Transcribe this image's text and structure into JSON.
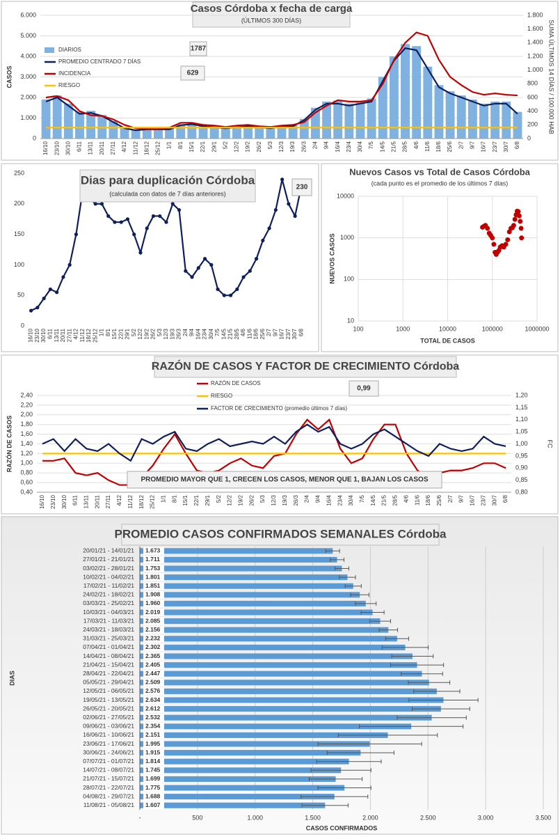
{
  "chart_data": [
    {
      "type": "combo",
      "title": "Casos Córdoba x fecha de carga",
      "subtitle": "(ÚLTIMOS 300 DÍAS)",
      "ylabel": "CASOS",
      "y2label": "SUMA ÚLTIMOS 14 DÍAS / 100.000 HAB",
      "categories": [
        "16/10",
        "23/10",
        "30/10",
        "6/11",
        "13/11",
        "20/11",
        "27/11",
        "4/12",
        "11/12",
        "18/12",
        "25/12",
        "1/1",
        "8/1",
        "15/1",
        "22/1",
        "29/1",
        "5/2",
        "12/2",
        "19/2",
        "26/2",
        "5/3",
        "12/3",
        "19/3",
        "26/3",
        "2/4",
        "9/4",
        "16/4",
        "23/4",
        "30/4",
        "7/5",
        "14/5",
        "21/5",
        "28/5",
        "4/6",
        "11/6",
        "18/6",
        "25/6",
        "2/7",
        "9/7",
        "16/7",
        "23/7",
        "30/7",
        "6/8"
      ],
      "series": [
        {
          "name": "DIARIOS",
          "kind": "bar",
          "color": "#7fb2e0",
          "values": [
            1900,
            2100,
            1700,
            1300,
            1350,
            1150,
            850,
            550,
            420,
            480,
            460,
            500,
            700,
            750,
            620,
            580,
            520,
            580,
            640,
            560,
            540,
            650,
            640,
            950,
            1500,
            1800,
            1850,
            1700,
            1800,
            1950,
            3000,
            4000,
            4600,
            4500,
            3500,
            2600,
            2300,
            2100,
            1900,
            1700,
            1800,
            1800,
            1300
          ]
        },
        {
          "name": "PROMEDIO CENTRADO 7 DÍAS",
          "kind": "line",
          "color": "#0d1f5c",
          "values": [
            1800,
            2000,
            1600,
            1200,
            1250,
            1100,
            800,
            500,
            400,
            450,
            450,
            450,
            650,
            700,
            600,
            550,
            500,
            550,
            600,
            550,
            500,
            600,
            600,
            900,
            1400,
            1700,
            1700,
            1600,
            1700,
            1800,
            2800,
            3800,
            4400,
            4300,
            3400,
            2500,
            2200,
            2000,
            1800,
            1600,
            1700,
            1700,
            1200
          ]
        },
        {
          "name": "INCIDENCIA",
          "kind": "line",
          "axis": "y2",
          "color": "#c00000",
          "values": [
            600,
            620,
            560,
            400,
            340,
            330,
            280,
            200,
            150,
            140,
            140,
            160,
            230,
            230,
            200,
            190,
            170,
            190,
            200,
            180,
            170,
            190,
            200,
            240,
            380,
            480,
            560,
            540,
            540,
            560,
            800,
            1150,
            1400,
            1550,
            1500,
            1150,
            900,
            780,
            680,
            640,
            660,
            640,
            630
          ]
        },
        {
          "name": "RIESGO",
          "kind": "line",
          "axis": "y2",
          "color": "#ffc000",
          "values": [
            160,
            160,
            160,
            160,
            160,
            160,
            160,
            160,
            160,
            160,
            160,
            160,
            160,
            160,
            160,
            160,
            160,
            160,
            160,
            160,
            160,
            160,
            160,
            160,
            160,
            160,
            160,
            160,
            160,
            160,
            160,
            160,
            160,
            160,
            160,
            160,
            160,
            160,
            160,
            160,
            160,
            160,
            160
          ]
        }
      ],
      "annotations": [
        "1787",
        "629"
      ],
      "ylim": [
        0,
        6000
      ],
      "yticks": [
        0,
        {
          "value": 1000,
          "label": "1.000"
        },
        {
          "value": 2000,
          "label": "2.000"
        },
        {
          "value": 3000,
          "label": "3.000"
        },
        {
          "value": 4000,
          "label": "4.000"
        },
        {
          "value": 5000,
          "label": "5.000"
        },
        {
          "value": 6000,
          "label": "6.000"
        }
      ],
      "y2lim": [
        0,
        1800
      ],
      "y2ticks": [
        0,
        200,
        400,
        600,
        800,
        {
          "value": 1000,
          "label": "1.000"
        },
        {
          "value": 1200,
          "label": "1.200"
        },
        {
          "value": 1400,
          "label": "1.400"
        },
        {
          "value": 1600,
          "label": "1.600"
        },
        {
          "value": 1800,
          "label": "1.800"
        }
      ],
      "grid": true
    },
    {
      "type": "line",
      "title": "Dias para duplicación Córdoba",
      "subtitle": "(calculada con datos de 7 días anteriores)",
      "annotations": [
        "230"
      ],
      "categories": [
        "16/10",
        "23/10",
        "30/10",
        "6/11",
        "13/11",
        "20/11",
        "27/11",
        "4/12",
        "11/12",
        "18/12",
        "25/12",
        "1/1",
        "8/1",
        "15/1",
        "22/1",
        "29/1",
        "5/2",
        "12/2",
        "19/2",
        "26/2",
        "5/3",
        "12/3",
        "19/3",
        "26/3",
        "2/4",
        "9/4",
        "16/4",
        "23/4",
        "30/4",
        "7/5",
        "14/5",
        "21/5",
        "28/5",
        "4/6",
        "11/6",
        "18/6",
        "25/6",
        "2/7",
        "9/7",
        "16/7",
        "23/7",
        "30/7",
        "6/8"
      ],
      "series": [
        {
          "name": "Dias para duplicación",
          "color": "#0d1f5c",
          "values": [
            25,
            30,
            45,
            60,
            55,
            80,
            100,
            150,
            220,
            210,
            200,
            200,
            180,
            170,
            170,
            175,
            150,
            120,
            160,
            180,
            180,
            170,
            200,
            190,
            90,
            80,
            95,
            110,
            100,
            60,
            50,
            50,
            60,
            80,
            90,
            110,
            140,
            160,
            190,
            240,
            200,
            180,
            230
          ]
        }
      ],
      "ylim": [
        0,
        250
      ],
      "yticks": [
        0,
        50,
        100,
        150,
        200,
        250
      ],
      "grid": false
    },
    {
      "type": "scatter",
      "title": "Nuevos Casos vs Total de Casos Córdoba",
      "subtitle": "(cada punto es el promedio de los últimos 7 días)",
      "xlabel": "TOTAL DE CASOS",
      "ylabel": "NUEVOS CASOS",
      "color": "#c00000",
      "x": [
        60000,
        65000,
        70000,
        78000,
        85000,
        92000,
        100000,
        108000,
        115000,
        122000,
        130000,
        140000,
        150000,
        165000,
        180000,
        200000,
        220000,
        240000,
        260000,
        280000,
        300000,
        320000,
        340000,
        360000,
        380000,
        400000,
        420000,
        440000,
        450000
      ],
      "y": [
        1800,
        1900,
        2000,
        1700,
        1300,
        1150,
        1000,
        700,
        450,
        400,
        450,
        500,
        600,
        650,
        600,
        700,
        900,
        1400,
        1700,
        1750,
        2000,
        2800,
        3600,
        4400,
        4300,
        3400,
        2500,
        1700,
        1000
      ],
      "log_x": true,
      "log_y": true,
      "xlim": [
        100,
        1000000
      ],
      "xticks": [
        100,
        1000,
        10000,
        100000,
        1000000
      ],
      "ylim": [
        10,
        10000
      ],
      "yticks": [
        10,
        100,
        1000,
        10000
      ],
      "grid": true
    },
    {
      "type": "combo",
      "title": "RAZÓN DE CASOS Y FACTOR DE CRECIMIENTO Córdoba",
      "ylabel": "RAZÓN DE CASOS",
      "y2label": "FC",
      "annotations": [
        "0,99",
        "PROMEDIO MAYOR QUE 1, CRECEN LOS CASOS, MENOR QUE 1, BAJAN LOS CASOS"
      ],
      "categories": [
        "16/10",
        "23/10",
        "30/10",
        "6/11",
        "13/11",
        "20/11",
        "27/11",
        "4/12",
        "11/12",
        "18/12",
        "25/12",
        "1/1",
        "8/1",
        "15/1",
        "22/1",
        "29/1",
        "5/2",
        "12/2",
        "19/2",
        "26/2",
        "5/3",
        "12/3",
        "19/3",
        "26/3",
        "2/4",
        "9/4",
        "16/4",
        "23/4",
        "30/4",
        "7/5",
        "14/5",
        "21/5",
        "28/5",
        "4/6",
        "11/6",
        "18/6",
        "25/6",
        "2/7",
        "9/7",
        "16/7",
        "23/7",
        "30/7",
        "6/8"
      ],
      "series": [
        {
          "name": "RAZÓN DE CASOS",
          "kind": "line",
          "color": "#c00000",
          "values": [
            1.05,
            1.05,
            1.1,
            0.8,
            0.75,
            0.8,
            0.65,
            0.55,
            0.55,
            0.7,
            0.95,
            1.3,
            1.6,
            1.2,
            0.85,
            0.8,
            0.85,
            1.0,
            1.1,
            0.95,
            0.9,
            1.15,
            1.2,
            1.6,
            1.9,
            1.7,
            1.9,
            1.3,
            1.0,
            1.1,
            1.5,
            1.8,
            1.8,
            1.2,
            0.85,
            0.7,
            0.8,
            0.85,
            0.85,
            0.9,
            1.0,
            1.0,
            0.9
          ]
        },
        {
          "name": "RIESGO",
          "kind": "line",
          "color": "#ffc000",
          "values": [
            1.2,
            1.2,
            1.2,
            1.2,
            1.2,
            1.2,
            1.2,
            1.2,
            1.2,
            1.2,
            1.2,
            1.2,
            1.2,
            1.2,
            1.2,
            1.2,
            1.2,
            1.2,
            1.2,
            1.2,
            1.2,
            1.2,
            1.2,
            1.2,
            1.2,
            1.2,
            1.2,
            1.2,
            1.2,
            1.2,
            1.2,
            1.2,
            1.2,
            1.2,
            1.2,
            1.2,
            1.2,
            1.2,
            1.2,
            1.2,
            1.2,
            1.2,
            1.2
          ]
        },
        {
          "name": "FACTOR DE CRECIMIENTO (promedio últimos 7 días)",
          "kind": "line",
          "axis": "y2",
          "color": "#0d1f5c",
          "values": [
            1.0,
            1.02,
            0.97,
            1.02,
            0.98,
            0.97,
            1.0,
            0.96,
            0.93,
            1.02,
            1.0,
            1.03,
            1.05,
            0.98,
            0.97,
            1.0,
            1.02,
            0.99,
            1.0,
            1.01,
            1.0,
            1.03,
            1.0,
            1.05,
            1.08,
            1.05,
            1.07,
            1.0,
            0.98,
            1.0,
            1.04,
            1.06,
            1.03,
            1.0,
            0.97,
            0.95,
            1.0,
            0.98,
            0.97,
            0.98,
            1.03,
            1.0,
            0.99
          ]
        }
      ],
      "ylim": [
        0.4,
        2.4
      ],
      "yticks": [
        {
          "value": 0.4,
          "label": "0,40"
        },
        {
          "value": 0.6,
          "label": "0,60"
        },
        {
          "value": 0.8,
          "label": "0,80"
        },
        {
          "value": 1.0,
          "label": "1,00"
        },
        {
          "value": 1.2,
          "label": "1,20"
        },
        {
          "value": 1.4,
          "label": "1,40"
        },
        {
          "value": 1.6,
          "label": "1,60"
        },
        {
          "value": 1.8,
          "label": "1,80"
        },
        {
          "value": 2.0,
          "label": "2,00"
        },
        {
          "value": 2.2,
          "label": "2,20"
        },
        {
          "value": 2.4,
          "label": "2,40"
        }
      ],
      "y2lim": [
        0.8,
        1.2
      ],
      "y2ticks": [
        {
          "value": 0.8,
          "label": "0,80"
        },
        {
          "value": 0.85,
          "label": "0,85"
        },
        {
          "value": 0.9,
          "label": "0,90"
        },
        {
          "value": 0.95,
          "label": "0,95"
        },
        {
          "value": 1.0,
          "label": "1,00"
        },
        {
          "value": 1.05,
          "label": "1,05"
        },
        {
          "value": 1.1,
          "label": "1,10"
        },
        {
          "value": 1.15,
          "label": "1,15"
        },
        {
          "value": 1.2,
          "label": "1,20"
        }
      ],
      "grid": true
    },
    {
      "type": "bar",
      "title": "PROMEDIO CASOS CONFIRMADOS SEMANALES Córdoba",
      "xlabel": "CASOS CONFIRMADOS",
      "ylabel": "DIAS",
      "color": "#5b9bd5",
      "orientation": "horizontal",
      "categories": [
        "20/01/21 - 14/01/21",
        "27/01/21 - 21/01/21",
        "03/02/21 - 28/01/21",
        "10/02/21 - 04/02/21",
        "17/02/21 - 11/02/21",
        "24/02/21 - 18/02/21",
        "03/03/21 - 25/02/21",
        "10/03/21 - 04/03/21",
        "17/03/21 - 11/03/21",
        "24/03/21 - 18/03/21",
        "31/03/21 - 25/03/21",
        "07/04/21 - 01/04/21",
        "14/04/21 - 08/04/21",
        "21/04/21 - 15/04/21",
        "28/04/21 - 22/04/21",
        "05/05/21 - 29/04/21",
        "12/05/21 - 06/05/21",
        "19/05/21 - 13/05/21",
        "26/05/21 - 20/05/21",
        "02/06/21 - 27/05/21",
        "09/06/21 - 03/06/21",
        "16/06/21 - 10/06/21",
        "23/06/21 - 17/06/21",
        "30/06/21 - 24/06/21",
        "07/07/21 - 01/07/21",
        "14/07/21 - 08/07/21",
        "21/07/21 - 15/07/21",
        "28/07/21 - 22/07/21",
        "04/08/21 - 29/07/21",
        "11/08/21 - 05/08/21"
      ],
      "values": [
        1673,
        1711,
        1753,
        1801,
        1851,
        1908,
        1960,
        2019,
        2085,
        2156,
        2232,
        2302,
        2365,
        2405,
        2447,
        2509,
        2576,
        2634,
        2612,
        2532,
        2354,
        2151,
        1995,
        1915,
        1814,
        1745,
        1699,
        1775,
        1688,
        1607
      ],
      "value_labels": [
        "1.673",
        "1.711",
        "1.753",
        "1.801",
        "1.851",
        "1.908",
        "1.960",
        "2.019",
        "2.085",
        "2.156",
        "2.232",
        "2.302",
        "2.365",
        "2.405",
        "2.447",
        "2.509",
        "2.576",
        "2.634",
        "2.612",
        "2.532",
        "2.354",
        "2.151",
        "1.995",
        "1.915",
        "1.814",
        "1.745",
        "1.699",
        "1.775",
        "1.688",
        "1.607"
      ],
      "errors": [
        60,
        60,
        60,
        70,
        70,
        80,
        90,
        100,
        90,
        80,
        100,
        200,
        180,
        230,
        180,
        180,
        200,
        300,
        250,
        300,
        450,
        430,
        450,
        290,
        280,
        260,
        230,
        230,
        290,
        200
      ],
      "xlim": [
        0,
        3500
      ],
      "xticks": [
        {
          "value": 0,
          "label": "-"
        },
        500,
        {
          "value": 1000,
          "label": "1.000"
        },
        {
          "value": 1500,
          "label": "1.500"
        },
        {
          "value": 2000,
          "label": "2.000"
        },
        {
          "value": 2500,
          "label": "2.500"
        },
        {
          "value": 3000,
          "label": "3.000"
        },
        {
          "value": 3500,
          "label": "3.500"
        }
      ],
      "grid": true
    }
  ]
}
